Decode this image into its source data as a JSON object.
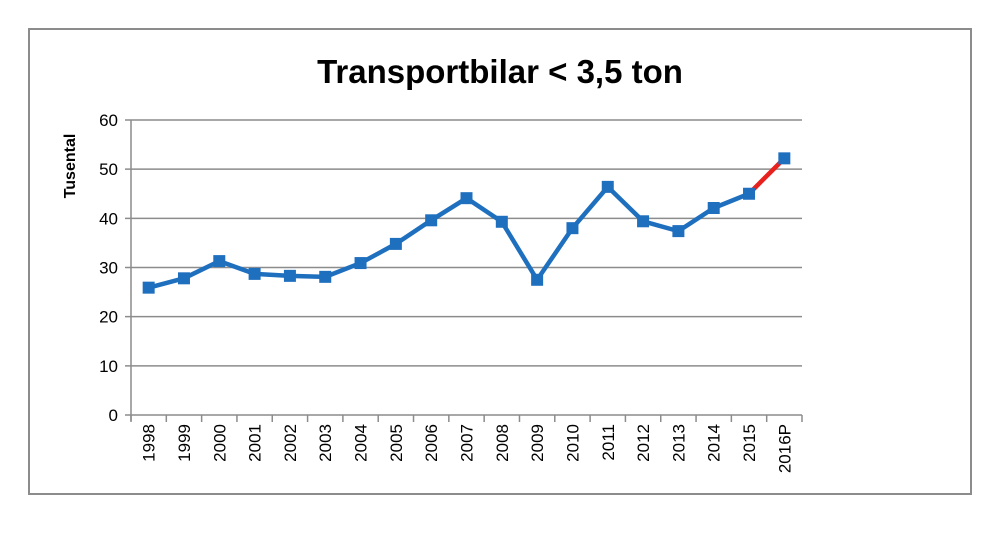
{
  "chart_data": {
    "type": "line",
    "title": "Transportbilar < 3,5 ton",
    "xlabel": "",
    "ylabel": "Tusental",
    "ylim": [
      0,
      60
    ],
    "yticks": [
      0,
      10,
      20,
      30,
      40,
      50,
      60
    ],
    "grid": true,
    "legend": null,
    "categories": [
      "1998",
      "1999",
      "2000",
      "2001",
      "2002",
      "2003",
      "2004",
      "2005",
      "2006",
      "2007",
      "2008",
      "2009",
      "2010",
      "2011",
      "2012",
      "2013",
      "2014",
      "2015",
      "2016P"
    ],
    "series": [
      {
        "name": "Transportbilar < 3,5 ton",
        "color": "#1F6FBF",
        "forecast_segment_color": "#E8201E",
        "marker": "square",
        "values": [
          25.9,
          27.8,
          31.3,
          28.7,
          28.3,
          28.1,
          30.9,
          34.8,
          39.6,
          44.1,
          39.3,
          27.5,
          38.0,
          46.4,
          39.4,
          37.4,
          42.1,
          45.0,
          52.2
        ]
      }
    ],
    "annotations": [
      "Final segment 2015 → 2016P drawn in red (forecast)"
    ]
  },
  "colors": {
    "line": "#1F6FBF",
    "marker": "#1F6FBF",
    "forecast": "#E8201E",
    "grid": "#8c8c8c",
    "axis": "#8c8c8c",
    "border": "#8c8c8c"
  }
}
